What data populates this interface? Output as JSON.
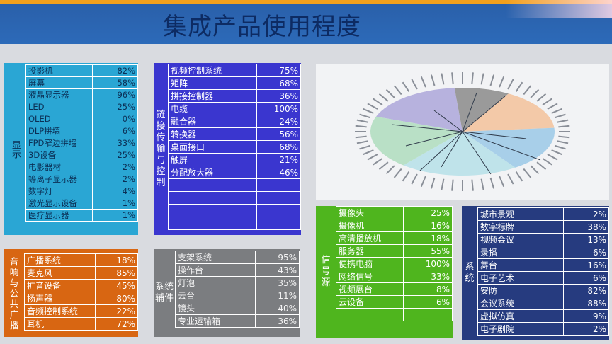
{
  "title": "集成产品使用程度",
  "display": {
    "label": "显示",
    "rows": [
      {
        "name": "投影机",
        "value": "82%"
      },
      {
        "name": "屏幕",
        "value": "58%"
      },
      {
        "name": "液晶显示器",
        "value": "96%"
      },
      {
        "name": "LED",
        "value": "25%"
      },
      {
        "name": "OLED",
        "value": "0%"
      },
      {
        "name": "DLP拼墙",
        "value": "6%"
      },
      {
        "name": "FPD窄边拼墙",
        "value": "33%"
      },
      {
        "name": "3D设备",
        "value": "25%"
      },
      {
        "name": "电影器材",
        "value": "2%"
      },
      {
        "name": "等离子显示器",
        "value": "2%"
      },
      {
        "name": "数字灯",
        "value": "4%"
      },
      {
        "name": "激光显示设备",
        "value": "1%"
      },
      {
        "name": "医疗显示器",
        "value": "1%"
      }
    ]
  },
  "link": {
    "label": "链接传输与控制",
    "rows": [
      {
        "name": "视频控制系统",
        "value": "75%"
      },
      {
        "name": "矩阵",
        "value": "68%"
      },
      {
        "name": "拼接控制器",
        "value": "36%"
      },
      {
        "name": "电缆",
        "value": "100%"
      },
      {
        "name": "融合器",
        "value": "24%"
      },
      {
        "name": "转换器",
        "value": "56%"
      },
      {
        "name": "桌面接口",
        "value": "68%"
      },
      {
        "name": "触屏",
        "value": "21%"
      },
      {
        "name": "分配放大器",
        "value": "46%"
      },
      {
        "name": "",
        "value": ""
      },
      {
        "name": "",
        "value": ""
      },
      {
        "name": "",
        "value": ""
      },
      {
        "name": "",
        "value": ""
      }
    ]
  },
  "audio": {
    "label": "音响与公共广播",
    "rows": [
      {
        "name": "广播系统",
        "value": "18%"
      },
      {
        "name": "麦克风",
        "value": "85%"
      },
      {
        "name": "扩音设备",
        "value": "45%"
      },
      {
        "name": "扬声器",
        "value": "80%"
      },
      {
        "name": "音频控制系统",
        "value": "22%"
      },
      {
        "name": "耳机",
        "value": "72%"
      }
    ]
  },
  "aux": {
    "label": "系统辅件",
    "rows": [
      {
        "name": "支架系统",
        "value": "95%"
      },
      {
        "name": "操作台",
        "value": "43%"
      },
      {
        "name": "灯泡",
        "value": "35%"
      },
      {
        "name": "云台",
        "value": "11%"
      },
      {
        "name": "镜头",
        "value": "40%"
      },
      {
        "name": "专业运输箱",
        "value": "36%"
      }
    ]
  },
  "signal": {
    "label": "信号源",
    "rows": [
      {
        "name": "摄像头",
        "value": "25%"
      },
      {
        "name": "摄像机",
        "value": "16%"
      },
      {
        "name": "高清播放机",
        "value": "18%"
      },
      {
        "name": "服务器",
        "value": "55%"
      },
      {
        "name": "便携电脑",
        "value": "100%"
      },
      {
        "name": "网络信号",
        "value": "33%"
      },
      {
        "name": "视频展台",
        "value": "8%"
      },
      {
        "name": "云设备",
        "value": "6%"
      },
      {
        "name": "",
        "value": ""
      }
    ]
  },
  "system": {
    "label": "系统",
    "rows": [
      {
        "name": "城市景观",
        "value": "2%"
      },
      {
        "name": "数字标牌",
        "value": "38%"
      },
      {
        "name": "视频会议",
        "value": "13%"
      },
      {
        "name": "录播",
        "value": "6%"
      },
      {
        "name": "舞台",
        "value": "16%"
      },
      {
        "name": "电子艺术",
        "value": "6%"
      },
      {
        "name": "安防",
        "value": "82%"
      },
      {
        "name": "会议系统",
        "value": "88%"
      },
      {
        "name": "虚拟仿真",
        "value": "9%"
      },
      {
        "name": "电子剧院",
        "value": "2%"
      }
    ]
  },
  "colors": {
    "display": "#2aa6d4",
    "link": "#3a36cf",
    "audio": "#d86612",
    "aux": "#7b7d80",
    "signal": "#4fb51e",
    "system": "#263b7f"
  }
}
